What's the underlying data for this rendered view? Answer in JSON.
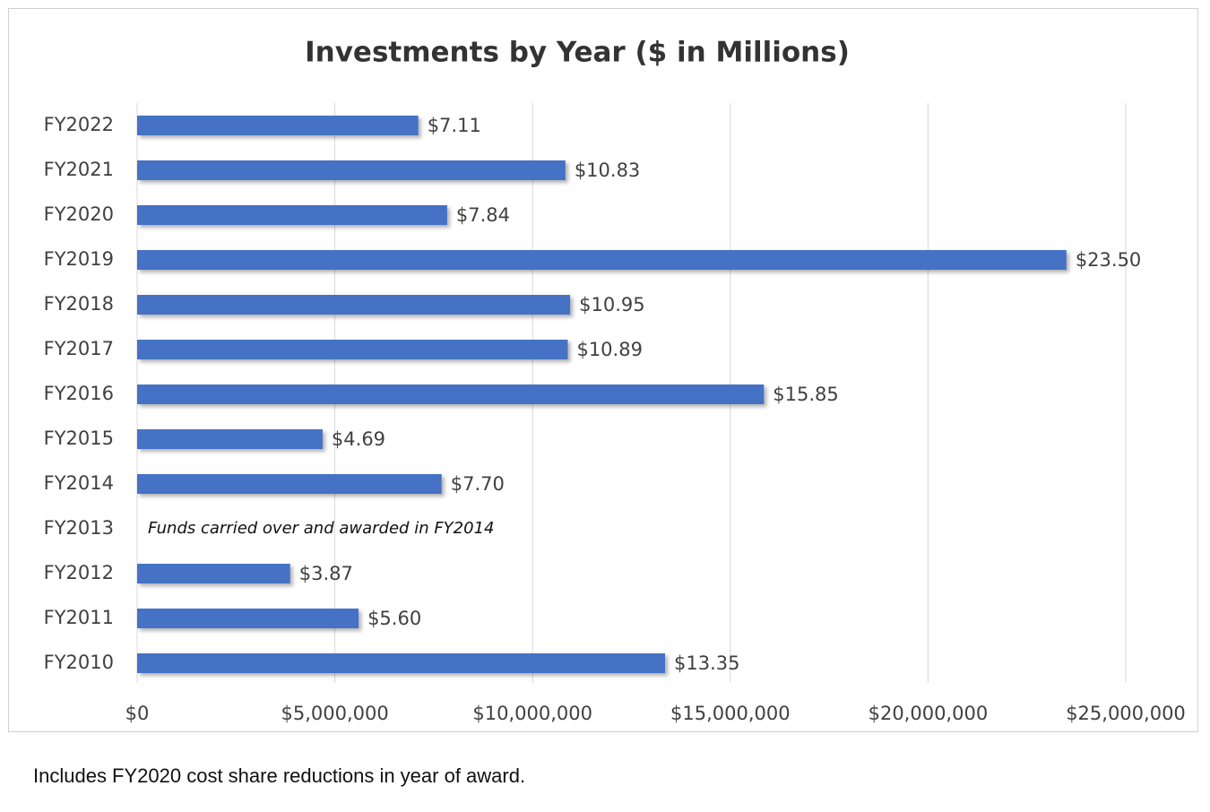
{
  "chart_data": {
    "type": "bar",
    "orientation": "horizontal",
    "title": "Investments by Year ($ in Millions)",
    "categories": [
      "FY2022",
      "FY2021",
      "FY2020",
      "FY2019",
      "FY2018",
      "FY2017",
      "FY2016",
      "FY2015",
      "FY2014",
      "FY2013",
      "FY2012",
      "FY2011",
      "FY2010"
    ],
    "values": [
      7110000,
      10830000,
      7840000,
      23500000,
      10950000,
      10890000,
      15850000,
      4690000,
      7700000,
      null,
      3870000,
      5600000,
      13350000
    ],
    "value_labels": [
      "$7.11",
      "$10.83",
      "$7.84",
      "$23.50",
      "$10.95",
      "$10.89",
      "$15.85",
      "$4.69",
      "$7.70",
      null,
      "$3.87",
      "$5.60",
      "$13.35"
    ],
    "color": "#4472c4",
    "xlim": [
      0,
      25000000
    ],
    "xticks": [
      {
        "value": 0,
        "label": "$0"
      },
      {
        "value": 5000000,
        "label": "$5,000,000"
      },
      {
        "value": 10000000,
        "label": "$10,000,000"
      },
      {
        "value": 15000000,
        "label": "$15,000,000"
      },
      {
        "value": 20000000,
        "label": "$20,000,000"
      },
      {
        "value": 25000000,
        "label": "$25,000,000"
      }
    ],
    "grid": true,
    "annotation": "Funds carried over and awarded in FY2014"
  },
  "footnote": "Includes FY2020 cost share reductions in year of award."
}
